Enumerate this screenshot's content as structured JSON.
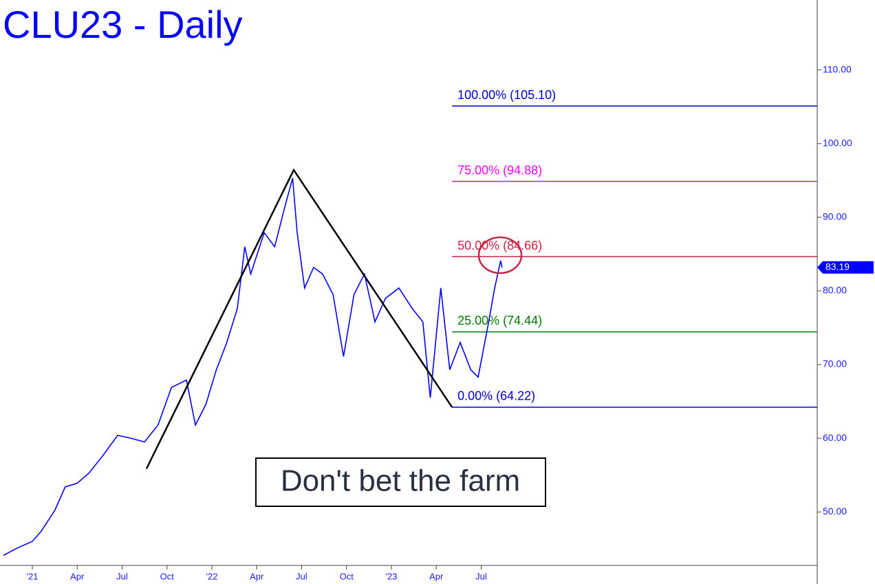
{
  "chart_data": {
    "type": "line",
    "title": "CLU23 - Daily",
    "annotation": "Don't bet the farm",
    "xlim": [
      -2.16,
      52.46
    ],
    "ylim": [
      42.74,
      119.49
    ],
    "xticks": [
      {
        "value": 0,
        "label": "'21"
      },
      {
        "value": 3,
        "label": "Apr"
      },
      {
        "value": 6,
        "label": "Jul"
      },
      {
        "value": 9,
        "label": "Oct"
      },
      {
        "value": 12,
        "label": "'22"
      },
      {
        "value": 15,
        "label": "Apr"
      },
      {
        "value": 18,
        "label": "Jul"
      },
      {
        "value": 21,
        "label": "Oct"
      },
      {
        "value": 24,
        "label": "'23"
      },
      {
        "value": 27,
        "label": "Apr"
      },
      {
        "value": 30,
        "label": "Jul"
      }
    ],
    "yticks": [
      {
        "value": 50,
        "label": "50.00"
      },
      {
        "value": 60,
        "label": "60.00"
      },
      {
        "value": 70,
        "label": "70.00"
      },
      {
        "value": 80,
        "label": "80.00"
      },
      {
        "value": 90,
        "label": "90.00"
      },
      {
        "value": 100,
        "label": "100.00"
      },
      {
        "value": 110,
        "label": "110.00"
      }
    ],
    "series": [
      {
        "name": "CLU23",
        "color": "#0000ff",
        "x": [
          -1.93,
          -1.0,
          0,
          0.6,
          1.5,
          2.2,
          3.0,
          3.8,
          4.7,
          5.7,
          6.6,
          7.5,
          8.4,
          9.3,
          10.3,
          10.9,
          11.6,
          12.3,
          13.0,
          13.7,
          14.2,
          14.6,
          15.5,
          16.2,
          16.9,
          17.4,
          17.7,
          18.2,
          18.8,
          19.4,
          20.1,
          20.8,
          21.5,
          22.2,
          22.9,
          23.6,
          24.5,
          25.4,
          26.1,
          26.6,
          27.3,
          27.9,
          28.6,
          29.3,
          29.8,
          30.5,
          30.9,
          31.3,
          31.4
        ],
        "values": [
          44.1,
          45.1,
          46.0,
          47.4,
          50.2,
          53.4,
          53.9,
          55.3,
          57.6,
          60.4,
          60.0,
          59.5,
          61.8,
          66.9,
          67.9,
          61.8,
          64.6,
          69.3,
          73.0,
          77.6,
          86.0,
          82.3,
          87.9,
          86.0,
          91.6,
          95.3,
          87.9,
          80.4,
          83.2,
          82.3,
          79.5,
          71.1,
          79.5,
          82.3,
          75.8,
          79.0,
          80.4,
          77.6,
          75.8,
          65.5,
          80.4,
          69.3,
          73.0,
          69.3,
          68.3,
          75.8,
          80.4,
          84.1,
          83.19
        ]
      }
    ],
    "pattern": {
      "color": "#000000",
      "x": [
        7.63,
        17.47,
        28.05
      ],
      "values": [
        55.86,
        96.42,
        64.22
      ]
    },
    "fib_levels": [
      {
        "label": "100.00% (105.10)",
        "value": 105.1,
        "color": "#0000cc"
      },
      {
        "label": "75.00% (94.88)",
        "value": 94.88,
        "color": "#ff00ff"
      },
      {
        "label": "50.00% (84.66)",
        "value": 84.66,
        "color": "#cc2244"
      },
      {
        "label": "25.00% (74.44)",
        "value": 74.44,
        "color": "#007700"
      },
      {
        "label": "0.00% (64.22)",
        "value": 64.22,
        "color": "#0000cc"
      }
    ]
  }
}
